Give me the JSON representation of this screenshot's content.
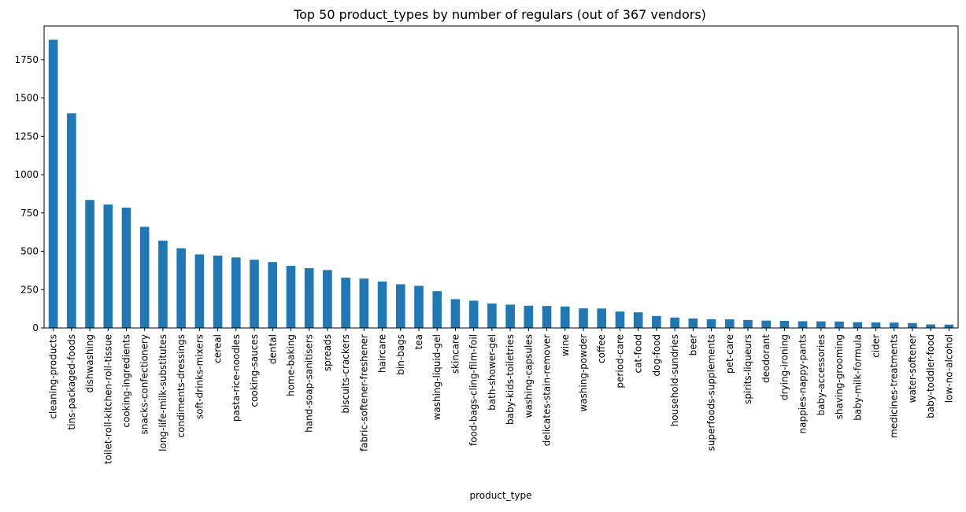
{
  "chart_data": {
    "type": "bar",
    "title": "Top 50 product_types by number of regulars (out of 367 vendors)",
    "xlabel": "product_type",
    "ylabel": "",
    "ylim": [
      0,
      1970
    ],
    "yticks": [
      0,
      250,
      500,
      750,
      1000,
      1250,
      1500,
      1750
    ],
    "grid": false,
    "legend": "none",
    "bar_color": "#1f77b4",
    "categories": [
      "cleaning-products",
      "tins-packaged-foods",
      "dishwashing",
      "toilet-roll-kitchen-roll-tissue",
      "cooking-ingredients",
      "snacks-confectionery",
      "long-life-milk-substitutes",
      "condiments-dressings",
      "soft-drinks-mixers",
      "cereal",
      "pasta-rice-noodles",
      "cooking-sauces",
      "dental",
      "home-baking",
      "hand-soap-sanitisers",
      "spreads",
      "biscuits-crackers",
      "fabric-softener-freshener",
      "haircare",
      "bin-bags",
      "tea",
      "washing-liquid-gel",
      "skincare",
      "food-bags-cling-film-foil",
      "bath-shower-gel",
      "baby-kids-toiletries",
      "washing-capsules",
      "delicates-stain-remover",
      "wine",
      "washing-powder",
      "coffee",
      "period-care",
      "cat-food",
      "dog-food",
      "household-sundries",
      "beer",
      "superfoods-supplements",
      "pet-care",
      "spirits-liqueurs",
      "deodorant",
      "drying-ironing",
      "nappies-nappy-pants",
      "baby-accessories",
      "shaving-grooming",
      "baby-milk-formula",
      "cider",
      "medicines-treatments",
      "water-softener",
      "baby-toddler-food",
      "low-no-alcohol"
    ],
    "values": [
      1880,
      1400,
      835,
      805,
      785,
      660,
      570,
      520,
      480,
      472,
      460,
      445,
      430,
      405,
      390,
      378,
      328,
      322,
      303,
      285,
      275,
      240,
      188,
      178,
      160,
      152,
      145,
      143,
      140,
      128,
      127,
      107,
      102,
      78,
      68,
      62,
      57,
      56,
      52,
      48,
      46,
      44,
      43,
      42,
      38,
      36,
      35,
      32,
      23,
      22
    ]
  }
}
